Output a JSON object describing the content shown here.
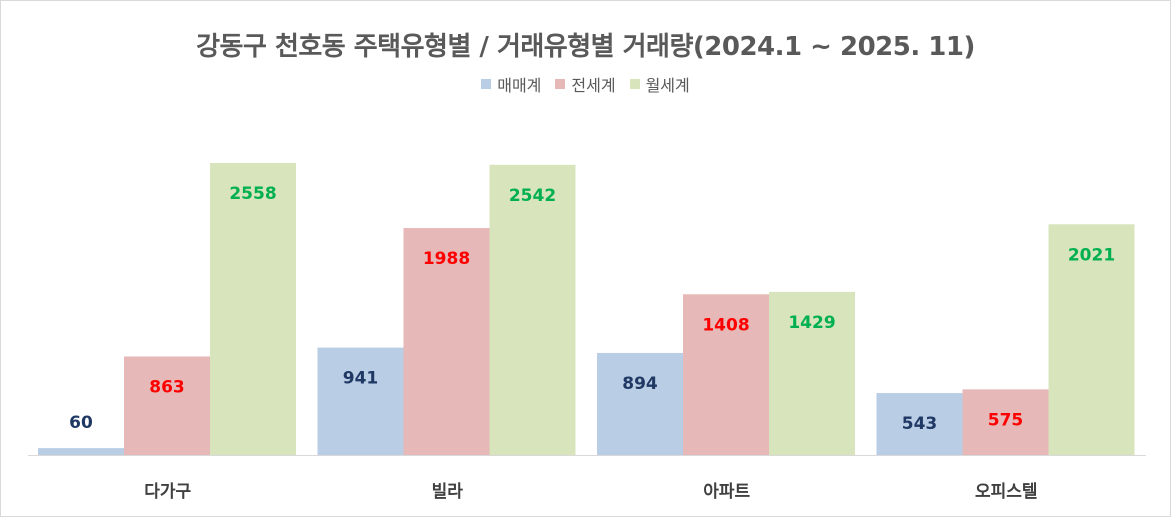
{
  "chart_data": {
    "type": "bar",
    "title": "강동구 천호동 주택유형별 / 거래유형별 거래량(2024.1 ~ 2025. 11)",
    "categories": [
      "다가구",
      "빌라",
      "아파트",
      "오피스텔"
    ],
    "series": [
      {
        "name": "매매계",
        "values": [
          60,
          941,
          894,
          543
        ],
        "color": "#b9cde4",
        "label_color": "#1f3864"
      },
      {
        "name": "전세계",
        "values": [
          863,
          1988,
          1408,
          575
        ],
        "color": "#e6b8b7",
        "label_color": "#ff0000"
      },
      {
        "name": "월세계",
        "values": [
          2558,
          2542,
          1429,
          2021
        ],
        "color": "#d7e4bc",
        "label_color": "#00b050"
      }
    ],
    "ylim": [
      0,
      2558
    ],
    "grid": false,
    "legend_position": "top",
    "axis_color": "#d9d9d9"
  }
}
